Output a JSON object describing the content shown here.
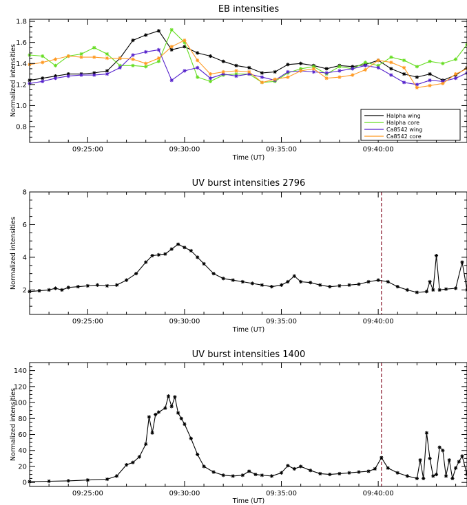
{
  "chart_data": [
    {
      "type": "line",
      "title": "EB intensities",
      "xlabel": "Time (UT)",
      "ylabel": "Normalized intensities",
      "x_range": [
        "09:22:00",
        "09:44:35"
      ],
      "x_tick_labels": [
        "09:25:00",
        "09:30:00",
        "09:35:00",
        "09:40:00"
      ],
      "ylim": [
        0.65,
        1.82
      ],
      "y_tick_labels": [
        "0.8",
        "1.0",
        "1.2",
        "1.4",
        "1.6",
        "1.8"
      ],
      "legend_position": "bottom-right",
      "x_times": [
        "09:22:00",
        "09:22:40",
        "09:23:20",
        "09:24:00",
        "09:24:40",
        "09:25:20",
        "09:26:00",
        "09:26:40",
        "09:27:20",
        "09:28:00",
        "09:28:40",
        "09:29:20",
        "09:30:00",
        "09:30:40",
        "09:31:20",
        "09:32:00",
        "09:32:40",
        "09:33:20",
        "09:34:00",
        "09:34:40",
        "09:35:20",
        "09:36:00",
        "09:36:40",
        "09:37:20",
        "09:38:00",
        "09:38:40",
        "09:39:20",
        "09:40:00",
        "09:40:40",
        "09:41:20",
        "09:42:00",
        "09:42:40",
        "09:43:20",
        "09:44:00",
        "09:44:35"
      ],
      "series": [
        {
          "name": "Halpha wing",
          "color": "#000000",
          "values": [
            1.24,
            1.26,
            1.28,
            1.3,
            1.3,
            1.31,
            1.33,
            1.45,
            1.62,
            1.67,
            1.71,
            1.53,
            1.56,
            1.5,
            1.47,
            1.42,
            1.38,
            1.36,
            1.31,
            1.32,
            1.39,
            1.4,
            1.38,
            1.35,
            1.38,
            1.37,
            1.39,
            1.43,
            1.35,
            1.3,
            1.27,
            1.3,
            1.24,
            1.29,
            1.36
          ]
        },
        {
          "name": "Halpha core",
          "color": "#66dd22",
          "values": [
            1.48,
            1.47,
            1.38,
            1.47,
            1.49,
            1.55,
            1.49,
            1.38,
            1.38,
            1.37,
            1.42,
            1.72,
            1.6,
            1.27,
            1.23,
            1.29,
            1.3,
            1.3,
            1.22,
            1.23,
            1.31,
            1.35,
            1.37,
            1.3,
            1.37,
            1.35,
            1.41,
            1.38,
            1.46,
            1.43,
            1.37,
            1.42,
            1.4,
            1.44,
            1.58
          ]
        },
        {
          "name": "Ca8542 wing",
          "color": "#5522cc",
          "values": [
            1.21,
            1.23,
            1.26,
            1.28,
            1.29,
            1.29,
            1.3,
            1.36,
            1.48,
            1.51,
            1.53,
            1.24,
            1.33,
            1.36,
            1.26,
            1.3,
            1.28,
            1.3,
            1.27,
            1.24,
            1.32,
            1.33,
            1.32,
            1.31,
            1.33,
            1.35,
            1.38,
            1.36,
            1.29,
            1.22,
            1.2,
            1.24,
            1.23,
            1.26,
            1.31
          ]
        },
        {
          "name": "Ca8542 core",
          "color": "#ff9922",
          "values": [
            1.39,
            1.41,
            1.44,
            1.47,
            1.46,
            1.46,
            1.45,
            1.45,
            1.44,
            1.4,
            1.45,
            1.56,
            1.62,
            1.43,
            1.3,
            1.32,
            1.33,
            1.32,
            1.22,
            1.25,
            1.27,
            1.33,
            1.35,
            1.26,
            1.27,
            1.29,
            1.34,
            1.43,
            1.41,
            1.36,
            1.17,
            1.19,
            1.21,
            1.3,
            1.35
          ]
        }
      ]
    },
    {
      "type": "line",
      "title": "UV burst intensities 2796",
      "xlabel": "Time (UT)",
      "ylabel": "Normalized intensities",
      "x_range": [
        "09:22:00",
        "09:44:35"
      ],
      "x_tick_labels": [
        "09:25:00",
        "09:30:00",
        "09:35:00",
        "09:40:00"
      ],
      "ylim": [
        0.5,
        8.0
      ],
      "y_tick_labels": [
        "2",
        "4",
        "6",
        "8"
      ],
      "vertical_line_time": "09:40:10",
      "series": [
        {
          "name": "",
          "color": "#000000",
          "x_times": [
            "09:22:00",
            "09:22:30",
            "09:23:00",
            "09:23:20",
            "09:23:40",
            "09:24:00",
            "09:24:30",
            "09:25:00",
            "09:25:30",
            "09:26:00",
            "09:26:30",
            "09:27:00",
            "09:27:30",
            "09:28:00",
            "09:28:20",
            "09:28:40",
            "09:29:00",
            "09:29:20",
            "09:29:40",
            "09:30:00",
            "09:30:20",
            "09:30:40",
            "09:31:00",
            "09:31:30",
            "09:32:00",
            "09:32:30",
            "09:33:00",
            "09:33:30",
            "09:34:00",
            "09:34:30",
            "09:35:00",
            "09:35:20",
            "09:35:40",
            "09:36:00",
            "09:36:30",
            "09:37:00",
            "09:37:30",
            "09:38:00",
            "09:38:30",
            "09:39:00",
            "09:39:30",
            "09:40:00",
            "09:40:30",
            "09:41:00",
            "09:41:30",
            "09:42:00",
            "09:42:30",
            "09:42:40",
            "09:42:50",
            "09:43:00",
            "09:43:10",
            "09:43:30",
            "09:44:00",
            "09:44:20",
            "09:44:35"
          ],
          "values": [
            1.9,
            1.95,
            2.0,
            2.1,
            2.0,
            2.15,
            2.2,
            2.25,
            2.3,
            2.25,
            2.3,
            2.6,
            3.0,
            3.7,
            4.1,
            4.15,
            4.2,
            4.5,
            4.8,
            4.6,
            4.4,
            4.0,
            3.6,
            3.0,
            2.7,
            2.6,
            2.5,
            2.4,
            2.3,
            2.2,
            2.3,
            2.5,
            2.85,
            2.5,
            2.45,
            2.3,
            2.2,
            2.25,
            2.3,
            2.35,
            2.5,
            2.6,
            2.5,
            2.2,
            2.0,
            1.85,
            1.9,
            2.5,
            2.0,
            4.1,
            2.0,
            2.05,
            2.1,
            3.7,
            2.0
          ]
        }
      ]
    },
    {
      "type": "line",
      "title": "UV burst intensities 1400",
      "xlabel": "Time (UT)",
      "ylabel": "Normalized intensities",
      "x_range": [
        "09:22:00",
        "09:44:35"
      ],
      "x_tick_labels": [
        "09:25:00",
        "09:30:00",
        "09:35:00",
        "09:40:00"
      ],
      "ylim": [
        -5,
        150
      ],
      "y_tick_labels": [
        "0",
        "20",
        "40",
        "60",
        "80",
        "100",
        "120",
        "140"
      ],
      "vertical_line_time": "09:40:10",
      "series": [
        {
          "name": "",
          "color": "#000000",
          "x_times": [
            "09:22:00",
            "09:23:00",
            "09:24:00",
            "09:25:00",
            "09:26:00",
            "09:26:30",
            "09:27:00",
            "09:27:20",
            "09:27:40",
            "09:28:00",
            "09:28:10",
            "09:28:20",
            "09:28:30",
            "09:28:40",
            "09:29:00",
            "09:29:10",
            "09:29:20",
            "09:29:30",
            "09:29:40",
            "09:29:50",
            "09:30:00",
            "09:30:20",
            "09:30:40",
            "09:31:00",
            "09:31:30",
            "09:32:00",
            "09:32:30",
            "09:33:00",
            "09:33:20",
            "09:33:40",
            "09:34:00",
            "09:34:30",
            "09:35:00",
            "09:35:20",
            "09:35:40",
            "09:36:00",
            "09:36:30",
            "09:37:00",
            "09:37:30",
            "09:38:00",
            "09:38:30",
            "09:39:00",
            "09:39:30",
            "09:39:50",
            "09:40:10",
            "09:40:30",
            "09:41:00",
            "09:41:30",
            "09:42:00",
            "09:42:10",
            "09:42:20",
            "09:42:30",
            "09:42:40",
            "09:42:50",
            "09:43:00",
            "09:43:10",
            "09:43:20",
            "09:43:30",
            "09:43:40",
            "09:43:50",
            "09:44:00",
            "09:44:10",
            "09:44:20",
            "09:44:35"
          ],
          "values": [
            1,
            1.5,
            2,
            3,
            4,
            8,
            22,
            25,
            32,
            48,
            82,
            62,
            85,
            88,
            93,
            108,
            95,
            107,
            87,
            80,
            73,
            55,
            35,
            20,
            13,
            9,
            8,
            9,
            14,
            10,
            9,
            8,
            12,
            21,
            17,
            20,
            15,
            11,
            10,
            11,
            12,
            13,
            14,
            17,
            31,
            18,
            12,
            8,
            5,
            28,
            5,
            62,
            30,
            8,
            10,
            44,
            40,
            8,
            28,
            5,
            18,
            26,
            33,
            10
          ]
        }
      ]
    }
  ],
  "panels": [
    {
      "title": "EB intensities",
      "ylabel": "Normalized intensities",
      "xlabel": "Time (UT)",
      "x_ticks": [
        "09:25:00",
        "09:30:00",
        "09:35:00",
        "09:40:00"
      ],
      "y_ticks": [
        "0.8",
        "1.0",
        "1.2",
        "1.4",
        "1.6",
        "1.8"
      ]
    },
    {
      "title": "UV burst intensities 2796",
      "ylabel": "Normalized intensities",
      "xlabel": "Time (UT)",
      "x_ticks": [
        "09:25:00",
        "09:30:00",
        "09:35:00",
        "09:40:00"
      ],
      "y_ticks": [
        "2",
        "4",
        "6",
        "8"
      ]
    },
    {
      "title": "UV burst intensities 1400",
      "ylabel": "Normalized intensities",
      "xlabel": "Time (UT)",
      "x_ticks": [
        "09:25:00",
        "09:30:00",
        "09:35:00",
        "09:40:00"
      ],
      "y_ticks": [
        "0",
        "20",
        "40",
        "60",
        "80",
        "100",
        "120",
        "140"
      ]
    }
  ],
  "colors": {
    "axis": "#000000",
    "marker": "#000000",
    "vline": "#8b1a2e"
  }
}
